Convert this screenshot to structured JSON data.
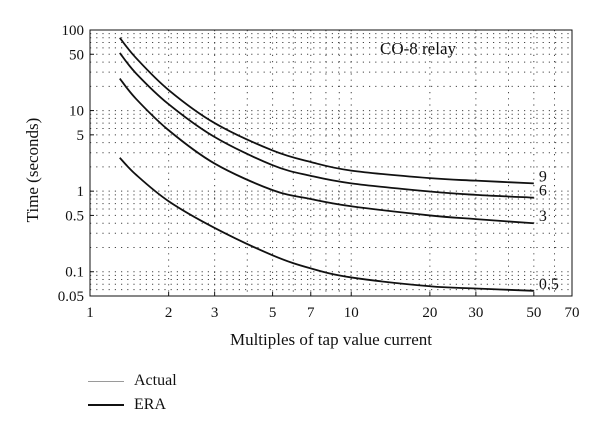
{
  "chart_data": {
    "type": "line",
    "title": "",
    "annotation": "CO-8 relay",
    "xlabel": "Multiples of tap value current",
    "ylabel": "Time (seconds)",
    "xscale": "log",
    "yscale": "log",
    "xlim": [
      1,
      70
    ],
    "ylim": [
      0.05,
      100
    ],
    "grid": true,
    "grid_style": "dotted",
    "x_ticks": [
      1,
      2,
      3,
      5,
      7,
      10,
      20,
      30,
      50,
      70
    ],
    "x_tick_labels": [
      "1",
      "2",
      "3",
      "5",
      "7",
      "10",
      "20",
      "30",
      "50",
      "70"
    ],
    "y_ticks": [
      0.05,
      0.1,
      0.5,
      1,
      5,
      10,
      50,
      100
    ],
    "y_tick_labels": [
      "0.05",
      "0.1",
      "0.5",
      "1",
      "5",
      "10",
      "50",
      "100"
    ],
    "legend": {
      "placement": "below-left",
      "entries": [
        {
          "label": "Actual",
          "color": "#9a9a9a"
        },
        {
          "label": "ERA",
          "color": "#111111"
        }
      ]
    },
    "series": [
      {
        "curve_label": "9",
        "color": "#111111",
        "x": [
          1.3,
          1.5,
          2,
          3,
          5,
          7,
          10,
          20,
          30,
          50
        ],
        "y": [
          80,
          45,
          18,
          7,
          3.2,
          2.3,
          1.8,
          1.45,
          1.35,
          1.25
        ]
      },
      {
        "curve_label": "6",
        "color": "#111111",
        "x": [
          1.3,
          1.5,
          2,
          3,
          5,
          7,
          10,
          20,
          30,
          50
        ],
        "y": [
          52,
          29,
          12,
          4.7,
          2.1,
          1.55,
          1.25,
          0.99,
          0.9,
          0.83
        ]
      },
      {
        "curve_label": "3",
        "color": "#111111",
        "x": [
          1.3,
          1.5,
          2,
          3,
          5,
          7,
          10,
          20,
          30,
          50
        ],
        "y": [
          25,
          14,
          5.7,
          2.2,
          1.03,
          0.8,
          0.65,
          0.5,
          0.45,
          0.4
        ]
      },
      {
        "curve_label": "0.5",
        "color": "#111111",
        "x": [
          1.3,
          1.5,
          2,
          3,
          5,
          7,
          10,
          20,
          30,
          50
        ],
        "y": [
          2.6,
          1.6,
          0.75,
          0.35,
          0.16,
          0.11,
          0.085,
          0.066,
          0.062,
          0.058
        ]
      }
    ]
  }
}
